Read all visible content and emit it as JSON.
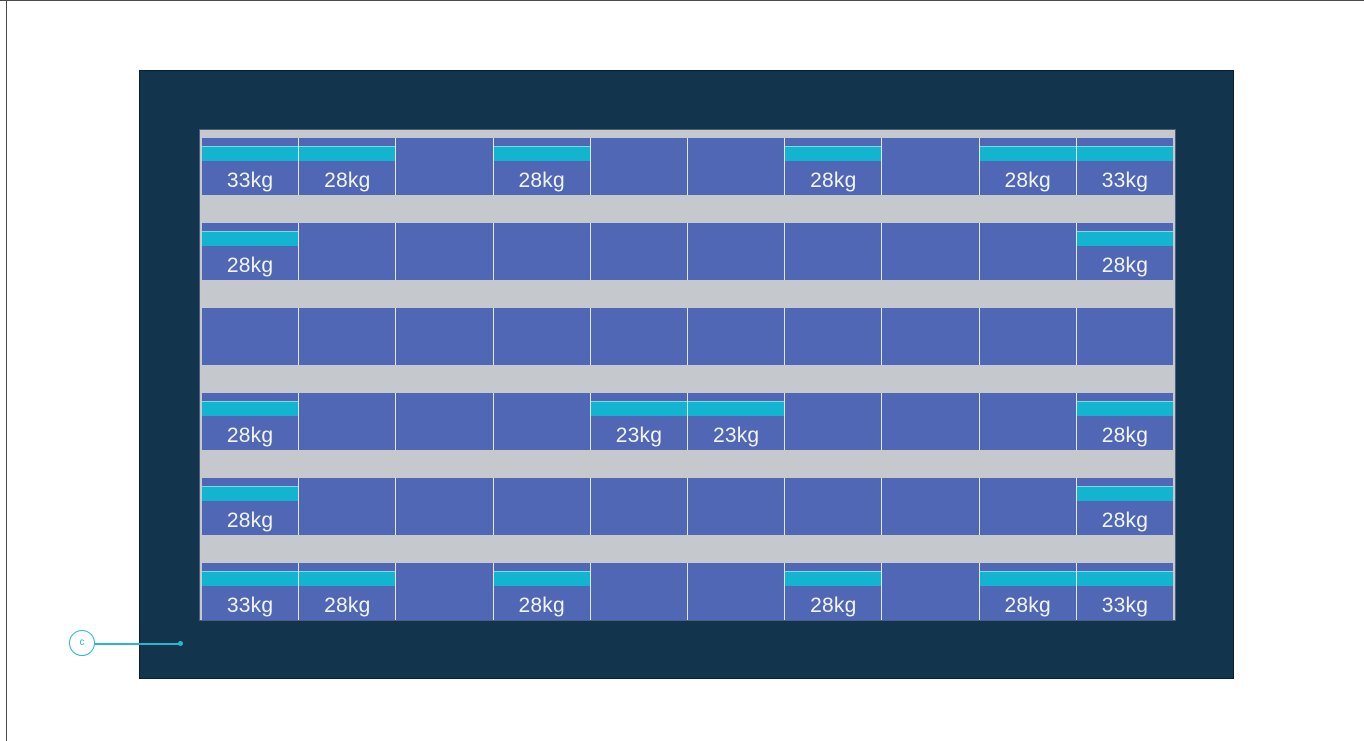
{
  "callout": {
    "label": "c"
  },
  "colors": {
    "frame": "#12354d",
    "aisle": "#c5c8cd",
    "cell": "#4f67b4",
    "marker": "#12b4cf",
    "callout": "#28b7cf"
  },
  "rows": [
    {
      "cells": [
        "33kg",
        "28kg",
        "",
        "28kg",
        "",
        "",
        "28kg",
        "",
        "28kg",
        "33kg"
      ]
    },
    {
      "cells": [
        "28kg",
        "",
        "",
        "",
        "",
        "",
        "",
        "",
        "",
        "28kg"
      ]
    },
    {
      "cells": [
        "",
        "",
        "",
        "",
        "",
        "",
        "",
        "",
        "",
        ""
      ]
    },
    {
      "cells": [
        "28kg",
        "",
        "",
        "",
        "23kg",
        "23kg",
        "",
        "",
        "",
        "28kg"
      ]
    },
    {
      "cells": [
        "28kg",
        "",
        "",
        "",
        "",
        "",
        "",
        "",
        "",
        "28kg"
      ]
    },
    {
      "cells": [
        "33kg",
        "28kg",
        "",
        "28kg",
        "",
        "",
        "28kg",
        "",
        "28kg",
        "33kg"
      ]
    }
  ]
}
